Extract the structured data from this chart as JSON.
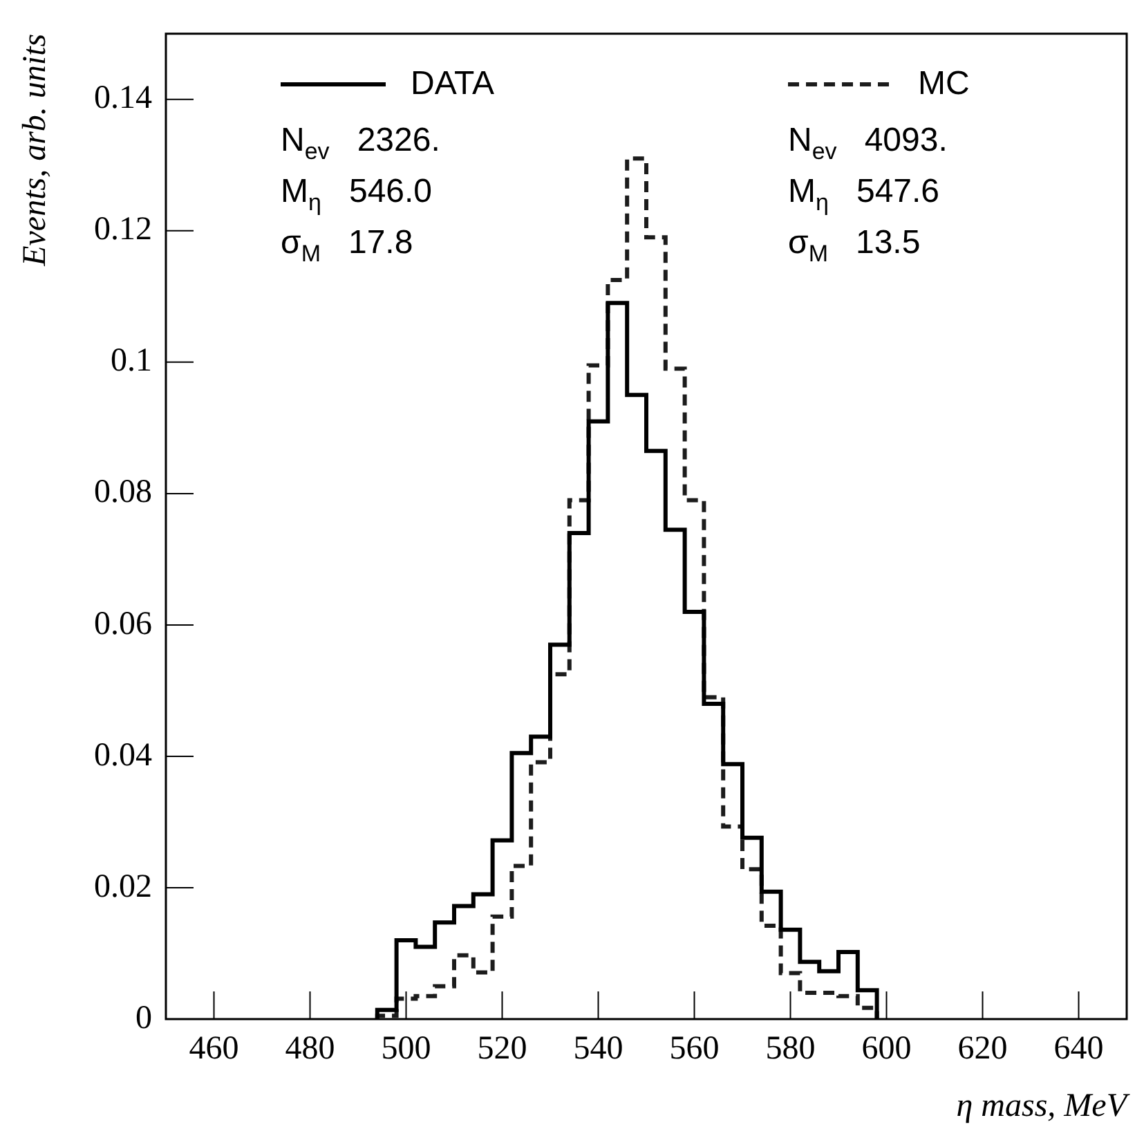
{
  "chart_data": {
    "type": "histogram",
    "xlabel": "η mass, MeV",
    "ylabel": "Events, arb. units",
    "bins": [
      494,
      498,
      502,
      506,
      510,
      514,
      518,
      522,
      526,
      530,
      534,
      538,
      542,
      546,
      550,
      554,
      558,
      562,
      566,
      570,
      574,
      578,
      582,
      586,
      590,
      594,
      598
    ],
    "series": [
      {
        "name": "DATA",
        "color": "#000000",
        "line_style": "solid",
        "values": [
          0.0014,
          0.012,
          0.011,
          0.0147,
          0.0172,
          0.019,
          0.0272,
          0.0405,
          0.043,
          0.057,
          0.074,
          0.091,
          0.109,
          0.095,
          0.0865,
          0.0745,
          0.062,
          0.048,
          0.0388,
          0.0276,
          0.0194,
          0.0136,
          0.0087,
          0.0073,
          0.0102,
          0.0044
        ]
      },
      {
        "name": "MC",
        "color": "#1c1c1c",
        "line_style": "dashed",
        "values": [
          0.0005,
          0.0031,
          0.0035,
          0.005,
          0.0097,
          0.0071,
          0.0156,
          0.0233,
          0.0391,
          0.0525,
          0.079,
          0.0995,
          0.1125,
          0.131,
          0.119,
          0.099,
          0.079,
          0.049,
          0.0293,
          0.0228,
          0.0142,
          0.007,
          0.004,
          0.004,
          0.0035,
          0.0017
        ]
      }
    ],
    "annotations": [
      "N$_{ev}$ 2326.",
      "M$_{η}$ 546.0",
      "σ$_{M}$ 17.8",
      "N$_{ev}$ 4093.",
      "M$_{η}$ 547.6",
      "σ$_{M}$ 13.5"
    ],
    "xlim": [
      450,
      650
    ],
    "xticks": [
      460,
      480,
      500,
      520,
      540,
      560,
      580,
      600,
      620,
      640
    ],
    "ylim": [
      0,
      0.15
    ],
    "yticks": [
      0,
      0.02,
      0.04,
      0.06,
      0.08,
      0.1,
      0.12,
      0.14
    ],
    "grid": false,
    "legend": "top"
  }
}
